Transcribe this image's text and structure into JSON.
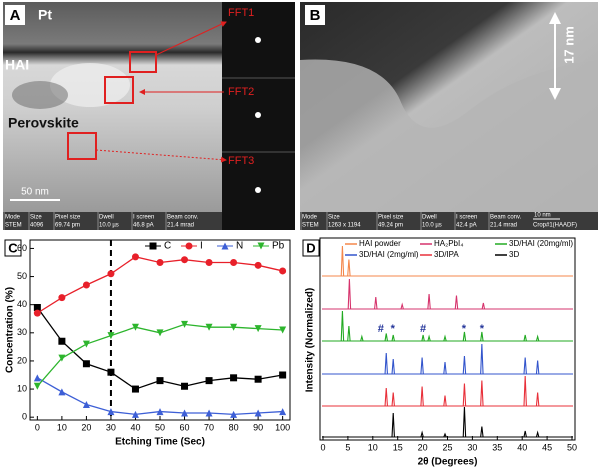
{
  "panels": {
    "a": {
      "label": "A",
      "pt": "Pt",
      "hai": "HAI",
      "perovskite": "Perovskite",
      "fft1": "FFT1",
      "fft2": "FFT2",
      "fft3": "FFT3",
      "scale": "50 nm",
      "meta": [
        {
          "k": "Mode",
          "v": "STEM"
        },
        {
          "k": "Size",
          "v": "4096"
        },
        {
          "k": "Pixel size",
          "v": "69.74 pm"
        },
        {
          "k": "Dwell",
          "v": "10.0 µs"
        },
        {
          "k": "I screen",
          "v": "46.8 pA"
        },
        {
          "k": "Beam conv.",
          "v": "21.4 mrad"
        }
      ]
    },
    "b": {
      "label": "B",
      "thickness": "17 nm",
      "scale": "10 nm",
      "crop": "Crop#1(HAADF)",
      "meta": [
        {
          "k": "Mode",
          "v": "STEM"
        },
        {
          "k": "Size",
          "v": "1263 x 1194"
        },
        {
          "k": "Pixel size",
          "v": "49.24 pm"
        },
        {
          "k": "Dwell",
          "v": "10.0 µs"
        },
        {
          "k": "I screen",
          "v": "42.4 pA"
        },
        {
          "k": "Beam conv.",
          "v": "21.4 mrad"
        }
      ]
    }
  },
  "chart_data": [
    {
      "type": "line",
      "label": "C",
      "xlabel": "Etching Time (Sec)",
      "ylabel": "Concentration (%)",
      "x": [
        0,
        10,
        20,
        30,
        40,
        50,
        60,
        70,
        80,
        90,
        100
      ],
      "series": [
        {
          "name": "C",
          "color": "#000000",
          "marker": "square",
          "values": [
            39,
            27,
            19,
            16,
            10,
            13,
            11,
            13,
            14,
            13.5,
            15
          ]
        },
        {
          "name": "I",
          "color": "#e8202a",
          "marker": "circle",
          "values": [
            37,
            42.5,
            47,
            51,
            57,
            55,
            56,
            55,
            55,
            54,
            52
          ]
        },
        {
          "name": "N",
          "color": "#3d5fd6",
          "marker": "triangle-up",
          "values": [
            14,
            9,
            4.5,
            2,
            1,
            2,
            1.5,
            1.5,
            1,
            1.5,
            2
          ]
        },
        {
          "name": "Pb",
          "color": "#2db52d",
          "marker": "triangle-down",
          "values": [
            11,
            21,
            26,
            29,
            32,
            30,
            33,
            32,
            32,
            31.5,
            31
          ]
        }
      ],
      "xlim": [
        -3,
        103
      ],
      "xticks": [
        0,
        10,
        20,
        30,
        40,
        50,
        60,
        70,
        80,
        90,
        100
      ],
      "ylim": [
        -1,
        63
      ],
      "yticks": [
        0,
        10,
        20,
        30,
        40,
        50,
        60
      ],
      "vline": 30,
      "legend": "top-right"
    },
    {
      "type": "spectrum",
      "label": "D",
      "xlabel": "2θ (Degrees)",
      "ylabel": "Intensity (Normalized)",
      "series": [
        {
          "name": "HAI powder",
          "color": "#f4874b",
          "peaks_x": [
            3.9,
            5.2
          ],
          "peaks_y": [
            1,
            0.55
          ]
        },
        {
          "name": "HA₂PbI₄",
          "color": "#d6336c",
          "peaks_x": [
            5.3,
            10.6,
            15.9,
            21.3,
            26.8,
            32.2
          ],
          "peaks_y": [
            1,
            0.4,
            0.15,
            0.5,
            0.45,
            0.2
          ]
        },
        {
          "name": "3D/HAI (20mg/ml)",
          "color": "#22aa22",
          "peaks_x": [
            3.9,
            5.2,
            7.8,
            12.7,
            14.1,
            20.1,
            21.3,
            24.5,
            28.4,
            31.9,
            40.6,
            43.1
          ],
          "peaks_y": [
            1,
            0.5,
            0.15,
            0.25,
            0.2,
            0.2,
            0.15,
            0.15,
            0.3,
            0.3,
            0.2,
            0.15
          ]
        },
        {
          "name": "3D/HAI (2mg/ml)",
          "color": "#3355cc",
          "peaks_x": [
            12.7,
            14.1,
            19.9,
            24.5,
            28.4,
            31.9,
            40.6,
            43.1
          ],
          "peaks_y": [
            0.7,
            0.5,
            0.55,
            0.4,
            0.6,
            1,
            0.55,
            0.45
          ]
        },
        {
          "name": "3D/IPA",
          "color": "#e8303a",
          "peaks_x": [
            12.7,
            14.1,
            19.9,
            24.5,
            28.4,
            31.9,
            40.6,
            43.1
          ],
          "peaks_y": [
            0.6,
            0.45,
            0.65,
            0.35,
            0.75,
            0.85,
            1,
            0.45
          ]
        },
        {
          "name": "3D",
          "color": "#000000",
          "peaks_x": [
            14.1,
            19.9,
            24.5,
            28.4,
            31.9,
            40.6,
            43.1
          ],
          "peaks_y": [
            0.8,
            0.15,
            0.1,
            1,
            0.35,
            0.2,
            0.15
          ]
        }
      ],
      "annotations": [
        {
          "text": "#",
          "x": 11.6
        },
        {
          "text": "*",
          "x": 14
        },
        {
          "text": "#",
          "x": 20.1
        },
        {
          "text": "*",
          "x": 28.3
        },
        {
          "text": "*",
          "x": 31.9
        }
      ],
      "xlim": [
        0,
        50
      ],
      "xticks": [
        0,
        5,
        10,
        15,
        20,
        25,
        30,
        35,
        40,
        45,
        50
      ],
      "legend": "top"
    }
  ]
}
